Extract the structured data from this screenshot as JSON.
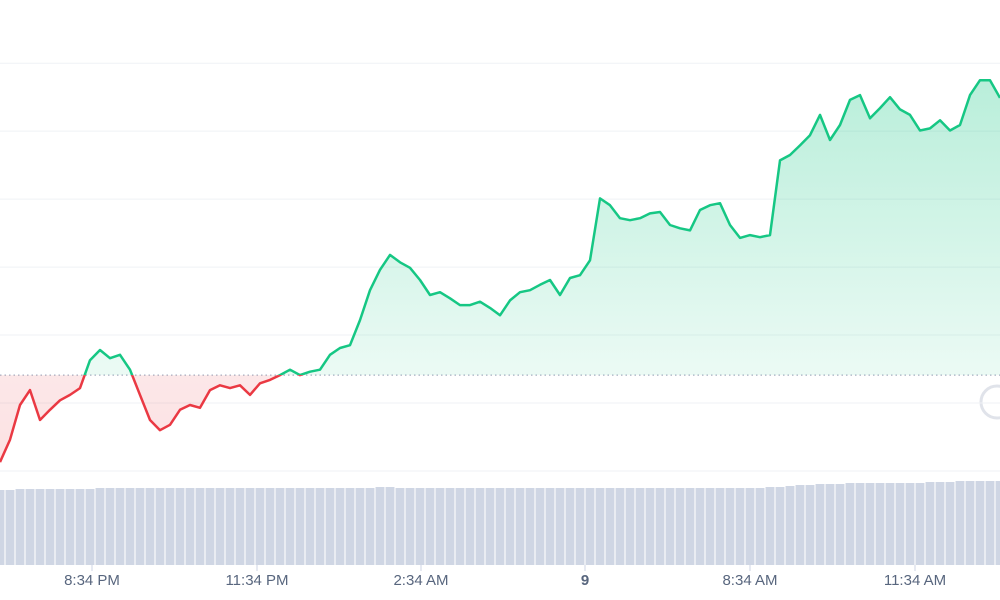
{
  "chart_data": {
    "type": "line",
    "values": [
      1.3,
      4.6,
      9.7,
      11.9,
      7.5,
      9.0,
      10.4,
      11.2,
      12.2,
      16.3,
      17.8,
      16.6,
      17.1,
      14.9,
      11.2,
      7.5,
      6.0,
      6.8,
      9.0,
      9.7,
      9.3,
      11.9,
      12.6,
      12.2,
      12.6,
      11.2,
      12.9,
      13.4,
      14.1,
      14.9,
      14.1,
      14.6,
      14.9,
      17.1,
      18.1,
      18.5,
      22.2,
      26.6,
      29.6,
      31.8,
      30.7,
      29.9,
      28.1,
      25.9,
      26.3,
      25.4,
      24.4,
      24.4,
      24.9,
      24.0,
      22.9,
      25.1,
      26.3,
      26.6,
      27.4,
      28.1,
      25.9,
      28.4,
      28.8,
      31.0,
      40.1,
      39.1,
      37.2,
      36.9,
      37.2,
      37.9,
      38.1,
      36.2,
      35.7,
      35.4,
      38.4,
      39.1,
      39.4,
      36.2,
      34.3,
      34.7,
      34.4,
      34.7,
      45.7,
      46.5,
      47.9,
      49.4,
      52.4,
      48.7,
      50.9,
      54.6,
      55.3,
      51.9,
      53.4,
      55.0,
      53.2,
      52.4,
      50.1,
      50.4,
      51.6,
      50.1,
      50.9,
      55.3,
      57.5,
      57.5,
      54.9
    ],
    "volume": [
      75,
      75,
      76,
      76,
      76,
      76,
      76,
      76,
      76,
      76,
      77,
      77,
      77,
      77,
      77,
      77,
      77,
      77,
      77,
      77,
      77,
      77,
      77,
      77,
      77,
      77,
      77,
      77,
      77,
      77,
      77,
      77,
      77,
      77,
      77,
      77,
      77,
      77,
      78,
      78,
      77,
      77,
      77,
      77,
      77,
      77,
      77,
      77,
      77,
      77,
      77,
      77,
      77,
      77,
      77,
      77,
      77,
      77,
      77,
      77,
      77,
      77,
      77,
      77,
      77,
      77,
      77,
      77,
      77,
      77,
      77,
      77,
      77,
      77,
      77,
      77,
      77,
      78,
      78,
      79,
      80,
      80,
      81,
      81,
      81,
      82,
      82,
      82,
      82,
      82,
      82,
      82,
      82,
      83,
      83,
      83,
      84,
      84,
      84,
      84,
      84
    ],
    "volume_lim": [
      0,
      90
    ],
    "baseline": 14.1,
    "up_color": "#16c784",
    "down_color": "#ea3943",
    "volume_color": "#cfd6e4",
    "xlim": [
      0,
      100
    ],
    "xticks": [
      {
        "value": 9.2,
        "label": "8:34 PM"
      },
      {
        "value": 25.7,
        "label": "11:34 PM"
      },
      {
        "value": 42.1,
        "label": "2:34 AM"
      },
      {
        "value": 58.5,
        "label": "9"
      },
      {
        "value": 75.0,
        "label": "8:34 AM"
      },
      {
        "value": 91.5,
        "label": "11:34 AM"
      }
    ],
    "ylim": [
      -2.8,
      69.3
    ],
    "yticks": [
      0,
      10,
      20,
      30,
      40,
      50,
      60
    ],
    "grid": true
  }
}
